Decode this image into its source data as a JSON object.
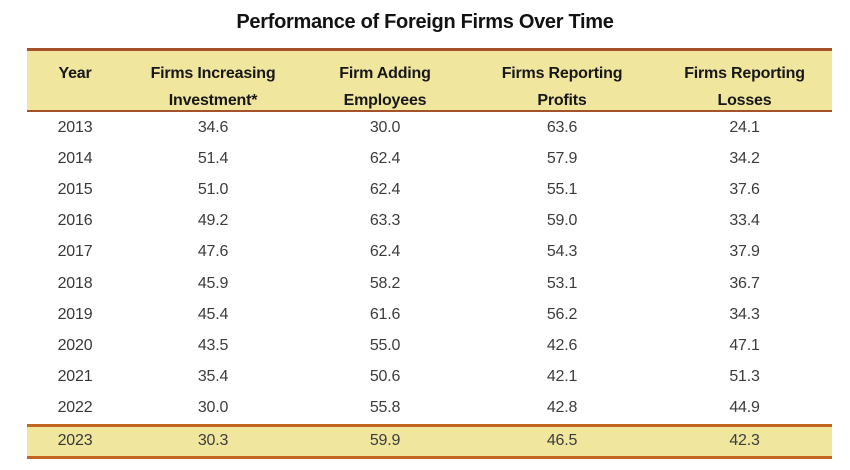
{
  "title": "Performance of Foreign Firms Over Time",
  "colors": {
    "header_background": "#F0E69E",
    "highlight_background": "#F0E69E",
    "header_border": "#A5522B",
    "highlight_border": "#C2661F",
    "title_text": "#121212",
    "value_text": "#3c3c3c"
  },
  "chart_data": {
    "type": "table",
    "title": "Performance of Foreign Firms Over Time",
    "columns": [
      {
        "line1": "Year",
        "line2": ""
      },
      {
        "line1": "Firms Increasing",
        "line2": "Investment*"
      },
      {
        "line1": "Firm Adding",
        "line2": "Employees"
      },
      {
        "line1": "Firms Reporting",
        "line2": "Profits"
      },
      {
        "line1": "Firms Reporting",
        "line2": "Losses"
      }
    ],
    "column_names_flat": [
      "Year",
      "Firms Increasing Investment*",
      "Firm Adding Employees",
      "Firms Reporting Profits",
      "Firms Reporting Losses"
    ],
    "rows": [
      [
        "2013",
        "34.6",
        "30.0",
        "63.6",
        "24.1"
      ],
      [
        "2014",
        "51.4",
        "62.4",
        "57.9",
        "34.2"
      ],
      [
        "2015",
        "51.0",
        "62.4",
        "55.1",
        "37.6"
      ],
      [
        "2016",
        "49.2",
        "63.3",
        "59.0",
        "33.4"
      ],
      [
        "2017",
        "47.6",
        "62.4",
        "54.3",
        "37.9"
      ],
      [
        "2018",
        "45.9",
        "58.2",
        "53.1",
        "36.7"
      ],
      [
        "2019",
        "45.4",
        "61.6",
        "56.2",
        "34.3"
      ],
      [
        "2020",
        "43.5",
        "55.0",
        "42.6",
        "47.1"
      ],
      [
        "2021",
        "35.4",
        "50.6",
        "42.1",
        "51.3"
      ],
      [
        "2022",
        "30.0",
        "55.8",
        "42.8",
        "44.9"
      ],
      [
        "2023",
        "30.3",
        "59.9",
        "46.5",
        "42.3"
      ]
    ],
    "highlight_row_index": 10,
    "layout": {
      "grid": false,
      "legend": "none",
      "header_rows": 1
    }
  }
}
